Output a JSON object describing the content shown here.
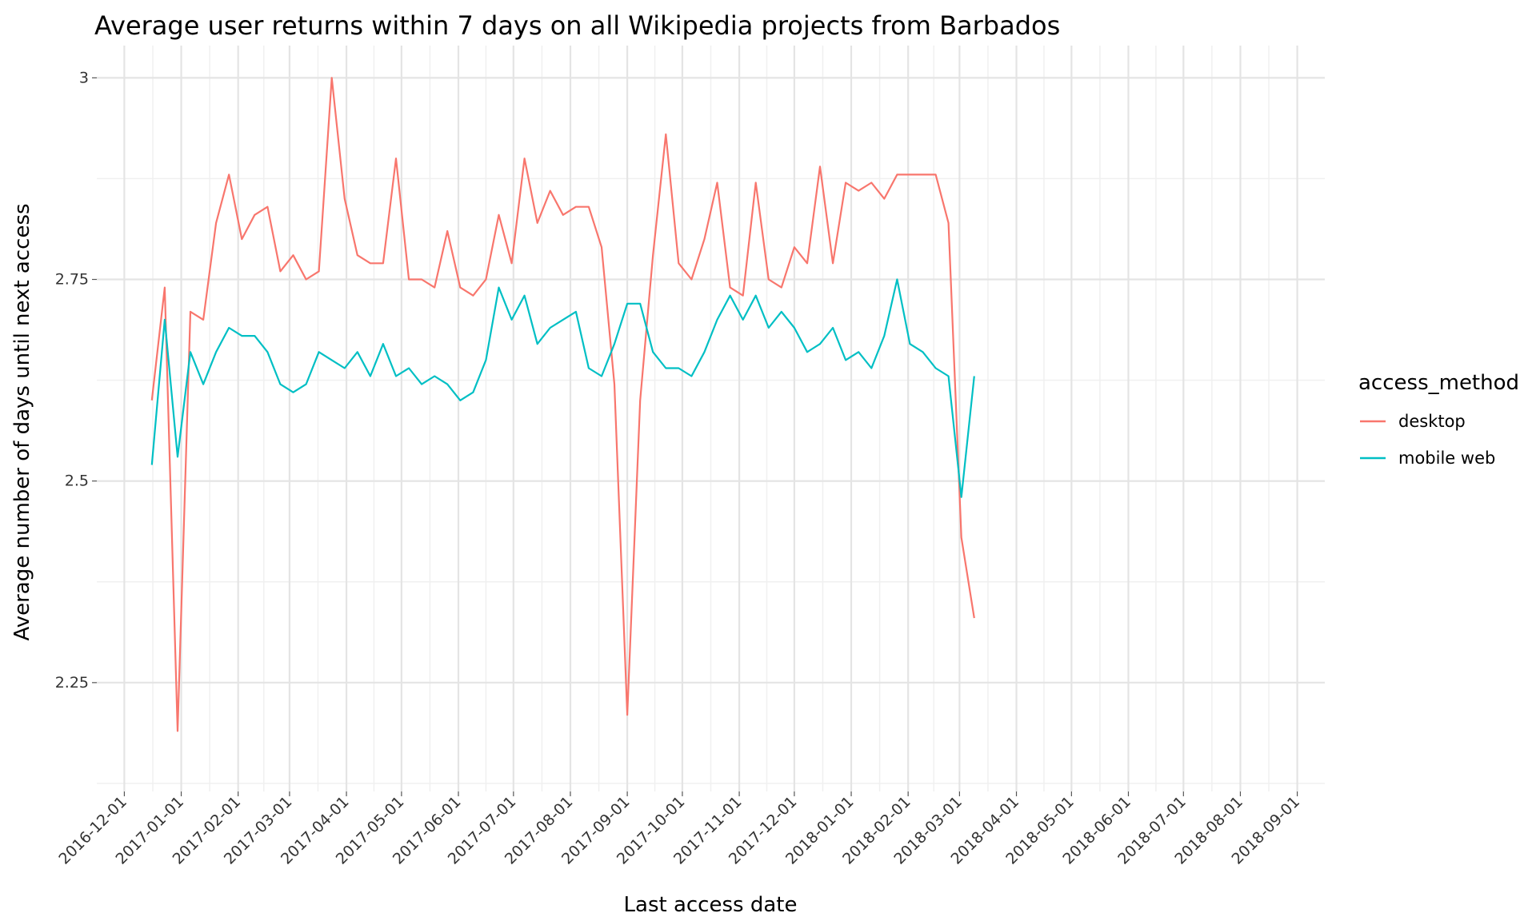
{
  "chart_data": {
    "type": "line",
    "title": "Average user returns within 7 days on all Wikipedia projects from Barbados",
    "xlabel": "Last access date",
    "ylabel": "Average number of days until next access",
    "x_range": [
      "2016-11-16",
      "2018-09-16"
    ],
    "ylim": [
      2.115,
      3.04
    ],
    "y_ticks": [
      2.25,
      2.5,
      2.75,
      3
    ],
    "y_tick_labels": [
      "2.25",
      "2.5",
      "2.75",
      "3"
    ],
    "x_tick_dates": [
      "2016-12-01",
      "2017-01-01",
      "2017-02-01",
      "2017-03-01",
      "2017-04-01",
      "2017-05-01",
      "2017-06-01",
      "2017-07-01",
      "2017-08-01",
      "2017-09-01",
      "2017-10-01",
      "2017-11-01",
      "2017-12-01",
      "2018-01-01",
      "2018-02-01",
      "2018-03-01",
      "2018-04-01",
      "2018-05-01",
      "2018-06-01",
      "2018-07-01",
      "2018-08-01",
      "2018-09-01"
    ],
    "x_tick_labels": [
      "2016-12-01",
      "2017-01-01",
      "2017-02-01",
      "2017-03-01",
      "2017-04-01",
      "2017-05-01",
      "2017-06-01",
      "2017-07-01",
      "2017-08-01",
      "2017-09-01",
      "2017-10-01",
      "2017-11-01",
      "2017-12-01",
      "2018-01-01",
      "2018-02-01",
      "2018-03-01",
      "2018-04-01",
      "2018-05-01",
      "2018-06-01",
      "2018-07-01",
      "2018-08-01",
      "2018-09-01"
    ],
    "grid": true,
    "legend_position": "right",
    "legend_title": "access_method",
    "series": [
      {
        "name": "desktop",
        "color": "#F8766D",
        "x_start": "2016-12-16",
        "step_days": 7,
        "values": [
          2.6,
          2.74,
          2.19,
          2.71,
          2.7,
          2.82,
          2.88,
          2.8,
          2.83,
          2.84,
          2.76,
          2.78,
          2.75,
          2.76,
          3.0,
          2.85,
          2.78,
          2.77,
          2.77,
          2.9,
          2.75,
          2.75,
          2.74,
          2.81,
          2.74,
          2.73,
          2.75,
          2.83,
          2.77,
          2.9,
          2.82,
          2.86,
          2.83,
          2.84,
          2.84,
          2.79,
          2.62,
          2.21,
          2.6,
          2.78,
          2.93,
          2.77,
          2.75,
          2.8,
          2.87,
          2.74,
          2.73,
          2.87,
          2.75,
          2.74,
          2.79,
          2.77,
          2.89,
          2.77,
          2.87,
          2.86,
          2.87,
          2.85,
          2.88,
          2.88,
          2.88,
          2.88,
          2.82,
          2.43,
          2.33
        ]
      },
      {
        "name": "mobile web",
        "color": "#00BFC4",
        "x_start": "2016-12-16",
        "step_days": 7,
        "values": [
          2.52,
          2.7,
          2.53,
          2.66,
          2.62,
          2.66,
          2.69,
          2.68,
          2.68,
          2.66,
          2.62,
          2.61,
          2.62,
          2.66,
          2.65,
          2.64,
          2.66,
          2.63,
          2.67,
          2.63,
          2.64,
          2.62,
          2.63,
          2.62,
          2.6,
          2.61,
          2.65,
          2.74,
          2.7,
          2.73,
          2.67,
          2.69,
          2.7,
          2.71,
          2.64,
          2.63,
          2.67,
          2.72,
          2.72,
          2.66,
          2.64,
          2.64,
          2.63,
          2.66,
          2.7,
          2.73,
          2.7,
          2.73,
          2.69,
          2.71,
          2.69,
          2.66,
          2.67,
          2.69,
          2.65,
          2.66,
          2.64,
          2.68,
          2.75,
          2.67,
          2.66,
          2.64,
          2.63,
          2.48,
          2.63
        ]
      }
    ]
  }
}
